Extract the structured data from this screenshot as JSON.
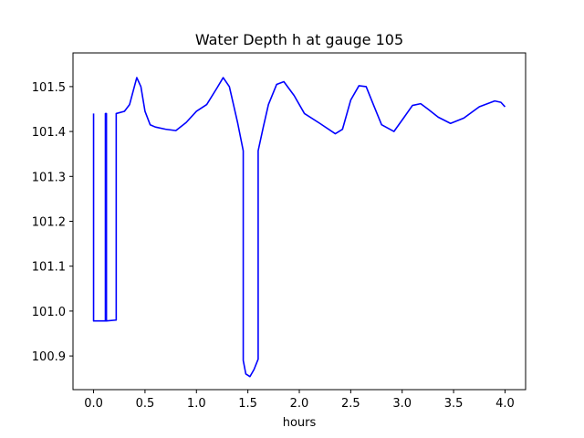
{
  "chart_data": {
    "type": "line",
    "title": "Water Depth h at gauge 105",
    "xlabel": "hours",
    "ylabel": "",
    "xlim": [
      -0.2,
      4.2
    ],
    "ylim": [
      100.825,
      101.575
    ],
    "xticks": [
      0.0,
      0.5,
      1.0,
      1.5,
      2.0,
      2.5,
      3.0,
      3.5,
      4.0
    ],
    "xtick_labels": [
      "0.0",
      "0.5",
      "1.0",
      "1.5",
      "2.0",
      "2.5",
      "3.0",
      "3.5",
      "4.0"
    ],
    "yticks": [
      100.9,
      101.0,
      101.1,
      101.2,
      101.3,
      101.4,
      101.5
    ],
    "ytick_labels": [
      "100.9",
      "101.0",
      "101.1",
      "101.2",
      "101.3",
      "101.4",
      "101.5"
    ],
    "grid": false,
    "series": [
      {
        "color": "#0000ff",
        "x": [
          0.0,
          0.0,
          0.115,
          0.115,
          0.125,
          0.125,
          0.22,
          0.22,
          0.3,
          0.35,
          0.42,
          0.46,
          0.5,
          0.55,
          0.6,
          0.7,
          0.8,
          0.9,
          1.0,
          1.1,
          1.2,
          1.26,
          1.32,
          1.4,
          1.455,
          1.455,
          1.48,
          1.52,
          1.56,
          1.6,
          1.6,
          1.65,
          1.7,
          1.78,
          1.85,
          1.95,
          2.05,
          2.2,
          2.35,
          2.42,
          2.5,
          2.58,
          2.65,
          2.72,
          2.8,
          2.92,
          3.02,
          3.1,
          3.18,
          3.25,
          3.35,
          3.47,
          3.6,
          3.75,
          3.9,
          3.96,
          4.0
        ],
        "y": [
          101.44,
          100.978,
          100.978,
          101.44,
          101.44,
          100.978,
          100.98,
          101.44,
          101.445,
          101.46,
          101.52,
          101.5,
          101.445,
          101.415,
          101.41,
          101.405,
          101.402,
          101.42,
          101.445,
          101.46,
          101.497,
          101.52,
          101.5,
          101.42,
          101.357,
          100.89,
          100.86,
          100.854,
          100.87,
          100.893,
          101.357,
          101.41,
          101.46,
          101.505,
          101.511,
          101.48,
          101.44,
          101.418,
          101.395,
          101.405,
          101.47,
          101.502,
          101.5,
          101.46,
          101.415,
          101.4,
          101.432,
          101.458,
          101.462,
          101.45,
          101.432,
          101.418,
          101.43,
          101.455,
          101.468,
          101.465,
          101.455
        ]
      }
    ]
  }
}
